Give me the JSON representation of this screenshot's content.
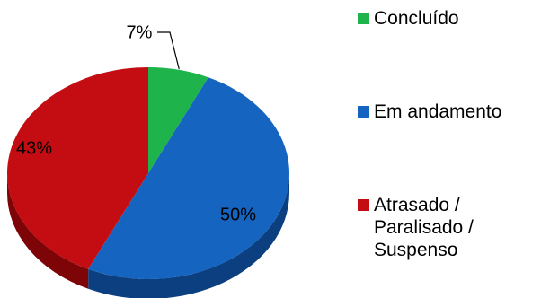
{
  "chart_data": {
    "type": "pie",
    "style": "3d",
    "categories": [
      "Concluído",
      "Em andamento",
      "Atrasado / Paralisado / Suspenso"
    ],
    "values": [
      7,
      50,
      43
    ],
    "data_labels": [
      "7%",
      "50%",
      "43%"
    ],
    "colors": [
      "#1fb34c",
      "#1565c0",
      "#c40d12"
    ],
    "side_colors": [
      "#0f7a30",
      "#0c3f80",
      "#7d0508"
    ],
    "legend_position": "right",
    "title": ""
  },
  "legend": {
    "items": [
      {
        "label": "Concluído",
        "color": "#1fb34c"
      },
      {
        "label": "Em andamento",
        "color": "#1565c0"
      },
      {
        "label": "Atrasado /\nParalisado /\nSuspenso",
        "color": "#c40d12"
      }
    ]
  }
}
